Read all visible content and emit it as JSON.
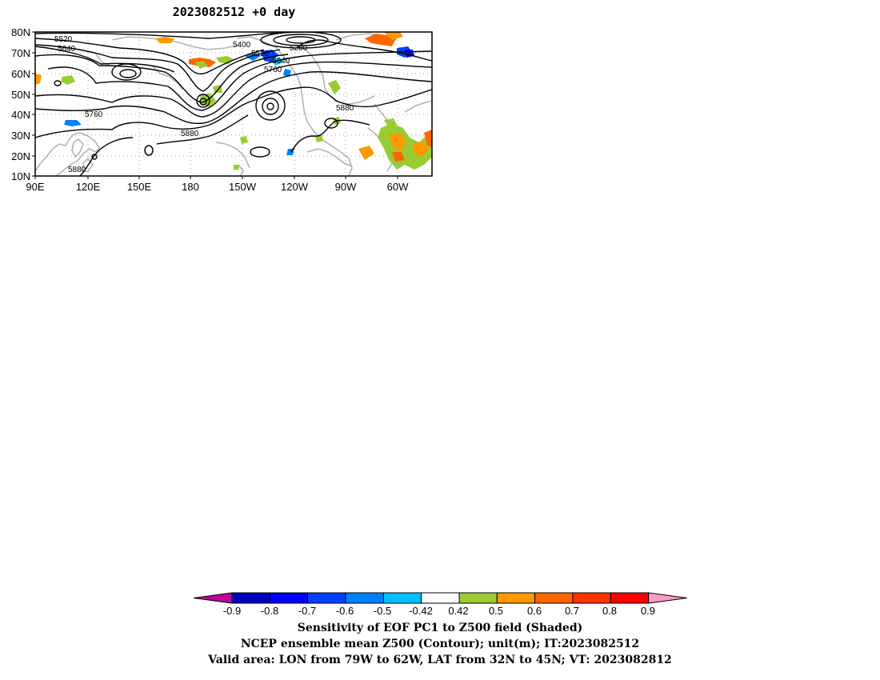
{
  "title": "2023082512 +0 day",
  "lat_labels": [
    "80N",
    "70N",
    "60N",
    "50N",
    "40N",
    "30N",
    "20N",
    "10N"
  ],
  "lon_labels": [
    "90E",
    "120E",
    "150E",
    "180",
    "150W",
    "120W",
    "90W",
    "60W"
  ],
  "contour_labels": [
    "5520",
    "5640",
    "5400",
    "5280",
    "5520",
    "5640",
    "5760",
    "5760",
    "5880",
    "5880",
    "5880"
  ],
  "colorbar": {
    "labels": [
      "-0.9",
      "-0.8",
      "-0.7",
      "-0.6",
      "-0.5",
      "-0.42",
      "0.42",
      "0.5",
      "0.6",
      "0.7",
      "0.8",
      "0.9"
    ],
    "colors": [
      "#c000a0",
      "#0000c0",
      "#0000ff",
      "#0040ff",
      "#0080ff",
      "#00c0ff",
      "#ffffff",
      "#99cc33",
      "#ff9900",
      "#ff6600",
      "#ff3300",
      "#ff0000",
      "#ff99cc"
    ]
  },
  "shading_colors": {
    "green": "#99cc33",
    "orange": "#ff9900",
    "dark_orange": "#ff6600",
    "blue": "#0080ff",
    "light_blue": "#00c0ff",
    "dark_blue": "#0040ff"
  },
  "captions": [
    "Sensitivity of EOF PC1 to Z500 field (Shaded)",
    "NCEP ensemble mean Z500 (Contour); unit(m); IT:2023082512",
    "Valid area: LON from 79W to 62W, LAT from 32N to 45N; VT: 2023082812"
  ]
}
